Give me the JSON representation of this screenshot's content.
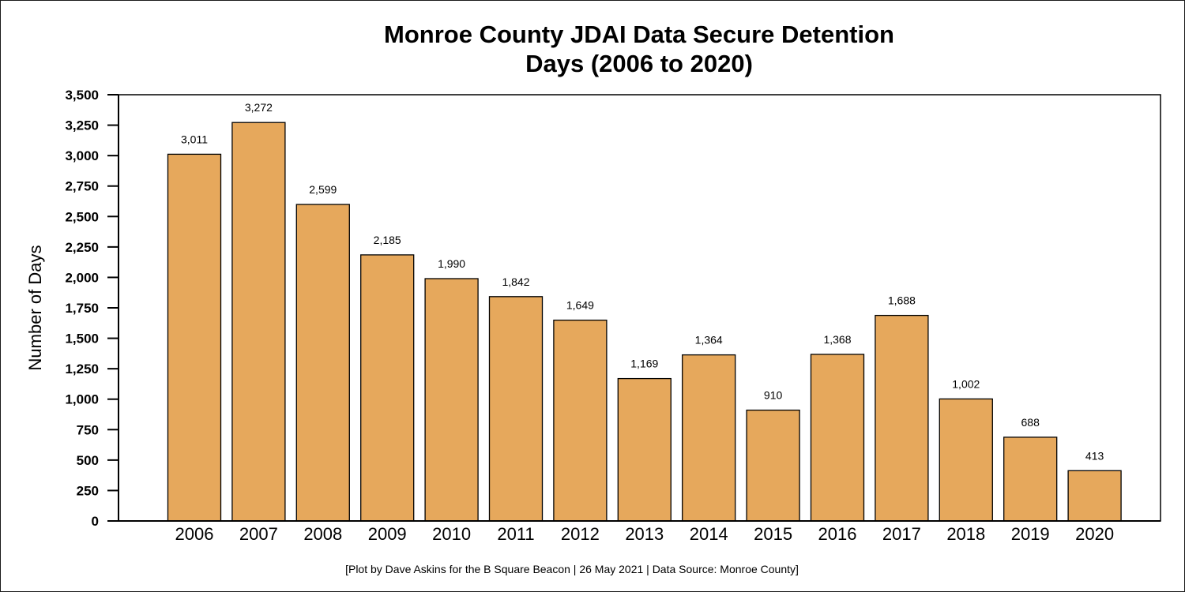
{
  "chart_data": {
    "type": "bar",
    "title_lines": [
      "Monroe County JDAI Data Secure Detention",
      "Days (2006 to 2020)"
    ],
    "xlabel": "",
    "ylabel": "Number of Days",
    "categories": [
      "2006",
      "2007",
      "2008",
      "2009",
      "2010",
      "2011",
      "2012",
      "2013",
      "2014",
      "2015",
      "2016",
      "2017",
      "2018",
      "2019",
      "2020"
    ],
    "values": [
      3011,
      3272,
      2599,
      2185,
      1990,
      1842,
      1649,
      1169,
      1364,
      910,
      1368,
      1688,
      1002,
      688,
      413
    ],
    "value_labels": [
      "3,011",
      "3,272",
      "2,599",
      "2,185",
      "1,990",
      "1,842",
      "1,649",
      "1,169",
      "1,364",
      "910",
      "1,368",
      "1,688",
      "1,002",
      "688",
      "413"
    ],
    "ylim": [
      0,
      3500
    ],
    "yticks": [
      0,
      250,
      500,
      750,
      1000,
      1250,
      1500,
      1750,
      2000,
      2250,
      2500,
      2750,
      3000,
      3250,
      3500
    ],
    "ytick_labels": [
      "0",
      "250",
      "500",
      "750",
      "1,000",
      "1,250",
      "1,500",
      "1,750",
      "2,000",
      "2,250",
      "2,500",
      "2,750",
      "3,000",
      "3,250",
      "3,500"
    ],
    "grid": false,
    "legend": "none",
    "bar_color": "#E6A85C",
    "edge_color": "#000000"
  },
  "credit": "[Plot by Dave Askins for the B Square Beacon | 26 May 2021 | Data Source: Monroe County]"
}
